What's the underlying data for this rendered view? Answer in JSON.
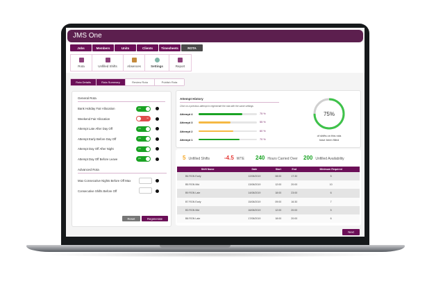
{
  "app_title": "JMS One",
  "nav": [
    "Jobs",
    "Members",
    "Units",
    "Clients",
    "Timesheets",
    "ROTA"
  ],
  "icon_tabs": [
    "Rota",
    "Unfilled Shifts",
    "Absences",
    "Settings",
    "Report"
  ],
  "sub_tabs": [
    "Rota Details",
    "Rota Summary",
    "Review Rota",
    "Publish Rota"
  ],
  "general": {
    "title": "General Rota",
    "items": [
      {
        "label": "Bank Holiday Fair Allocation",
        "state": "yes"
      },
      {
        "label": "Weekend Fair Allocation",
        "state": "no"
      },
      {
        "label": "Attempt Late After Day Off",
        "state": "yes"
      },
      {
        "label": "Attempt Early Before Day Off",
        "state": "yes"
      },
      {
        "label": "Attempt Day Off After Night",
        "state": "yes"
      },
      {
        "label": "Attempt Day Off Before Leave",
        "state": "yes"
      }
    ]
  },
  "advanced": {
    "title": "Advanced Rota",
    "items": [
      "Max Consecutive Nights Before Off Max",
      "Consecutive Shifts Before Off"
    ]
  },
  "buttons": {
    "reset": "Reset",
    "regenerate": "Regenerate",
    "next": "Next"
  },
  "history": {
    "title": "Attempt History",
    "hint": "Click on a previous attempt to regenerate the rota with the same settings",
    "attempts": [
      {
        "label": "Attempt 4",
        "pct": 75,
        "text": "75 %",
        "color": "#1aa324"
      },
      {
        "label": "Attempt 3",
        "pct": 55,
        "text": "55 %",
        "color": "#f5b843"
      },
      {
        "label": "Attempt 2",
        "pct": 60,
        "text": "60 %",
        "color": "#f5b843"
      },
      {
        "label": "Attempt 1",
        "pct": 70,
        "text": "70 %",
        "color": "#1aa324"
      }
    ]
  },
  "gauge": {
    "value": 75,
    "text": "75%",
    "caption1": "of shifts on this rota",
    "caption2": "have been filled"
  },
  "stats": [
    {
      "value": "5",
      "label": "Unfilled Shifts",
      "color": "#f5a623"
    },
    {
      "value": "-4.5",
      "label": "WTE",
      "color": "#e53935"
    },
    {
      "value": "240",
      "label": "Hours Carried Over",
      "color": "#1aa324"
    },
    {
      "value": "200",
      "label": "Unfilled Availability",
      "color": "#1aa324"
    }
  ],
  "table": {
    "headers": [
      "Shift Name",
      "Date",
      "Start",
      "End",
      "Minimum Required"
    ],
    "rows": [
      [
        "B6 RGN Early",
        "12/08/2019",
        "08:00",
        "17:30",
        "5"
      ],
      [
        "B5 RGN Mid",
        "13/08/2019",
        "12:00",
        "20:00",
        "10"
      ],
      [
        "B9 RGN Late",
        "14/08/2019",
        "18:00",
        "23:00",
        "6"
      ],
      [
        "B7 RGN Early",
        "15/08/2019",
        "09:00",
        "16:30",
        "7"
      ],
      [
        "B3 RGN Mid",
        "16/08/2019",
        "12:00",
        "20:00",
        "5"
      ],
      [
        "B8 RGN Late",
        "17/08/2019",
        "18:00",
        "20:00",
        "6"
      ]
    ]
  }
}
